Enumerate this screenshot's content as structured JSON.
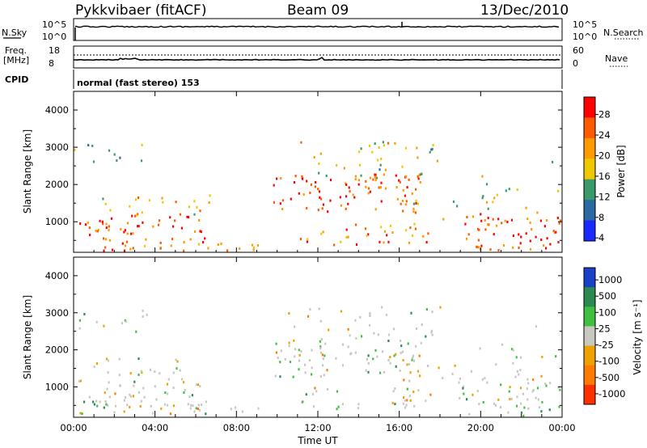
{
  "header": {
    "radar": "Pykkvibaer (fitACF)",
    "beam": "Beam 09",
    "date": "13/Dec/2010"
  },
  "nsky_panel": {
    "left_label": "N.Sky",
    "right_label": "N.Search",
    "ticks_left": [
      "10^5",
      "10^0"
    ],
    "ticks_right": [
      "10^5",
      "10^0"
    ]
  },
  "freq_panel": {
    "left_label_1": "Freq.",
    "left_label_2": "[MHz]",
    "ticks_left": [
      "18",
      "8"
    ],
    "ticks_right": [
      "60",
      "0"
    ],
    "right_label": "Nave"
  },
  "cpid": {
    "label": "CPID",
    "value": "normal (fast stereo) 153"
  },
  "x_axis": {
    "title": "Time UT",
    "ticks": [
      "00:00",
      "04:00",
      "08:00",
      "12:00",
      "16:00",
      "20:00",
      "00:00"
    ]
  },
  "power_colorbar": {
    "title": "Power [dB]",
    "ticks": [
      "28",
      "24",
      "20",
      "16",
      "12",
      "8",
      "4"
    ],
    "colors": [
      "#ff0000",
      "#ff5a00",
      "#ff9a00",
      "#f0c800",
      "#3a9a6a",
      "#2a6aa0",
      "#1a2aff"
    ]
  },
  "velocity_colorbar": {
    "title": "Velocity [m s⁻¹]",
    "ticks": [
      "1000",
      "500",
      "100",
      "25",
      "-25",
      "-100",
      "-500",
      "-1000"
    ],
    "colors": [
      "#1a40c8",
      "#2a8a50",
      "#40c040",
      "#c8c8c0",
      "#f0a000",
      "#ff7a00",
      "#ff3000"
    ]
  },
  "chart_data": [
    {
      "type": "line",
      "title": "N.Sky / N.Search",
      "x": [
        0,
        24
      ],
      "ylim_left": [
        "10^0",
        "10^5"
      ],
      "ylim_right": [
        "10^0",
        "10^5"
      ]
    },
    {
      "type": "line",
      "title": "Freq. [MHz] / Nave",
      "ylim_left": [
        8,
        18
      ],
      "ylim_right": [
        0,
        60
      ],
      "frequency_mhz": 10.0,
      "nave": 20
    },
    {
      "type": "heatmap",
      "variable": "Power [dB]",
      "xlabel": "Time UT",
      "ylabel": "Slant Range [km]",
      "xlim_hours": [
        0,
        24
      ],
      "ylim_km": [
        180,
        4500
      ],
      "yticks": [
        1000,
        2000,
        3000,
        4000
      ],
      "colorbar_range": [
        0,
        30
      ]
    },
    {
      "type": "heatmap",
      "variable": "Velocity [m s-1]",
      "xlabel": "Time UT",
      "ylabel": "Slant Range [km]",
      "xlim_hours": [
        0,
        24
      ],
      "ylim_km": [
        180,
        4500
      ],
      "yticks": [
        1000,
        2000,
        3000,
        4000
      ],
      "colorbar_levels": [
        1000,
        500,
        100,
        25,
        -25,
        -100,
        -500,
        -1000
      ]
    }
  ],
  "axis_labels": {
    "power_ylabel": "Slant Range [km]",
    "velocity_ylabel": "Slant Range [km]",
    "power_yticks": [
      "4000",
      "3000",
      "2000",
      "1000"
    ],
    "velocity_yticks": [
      "4000",
      "3000",
      "2000",
      "1000"
    ]
  }
}
